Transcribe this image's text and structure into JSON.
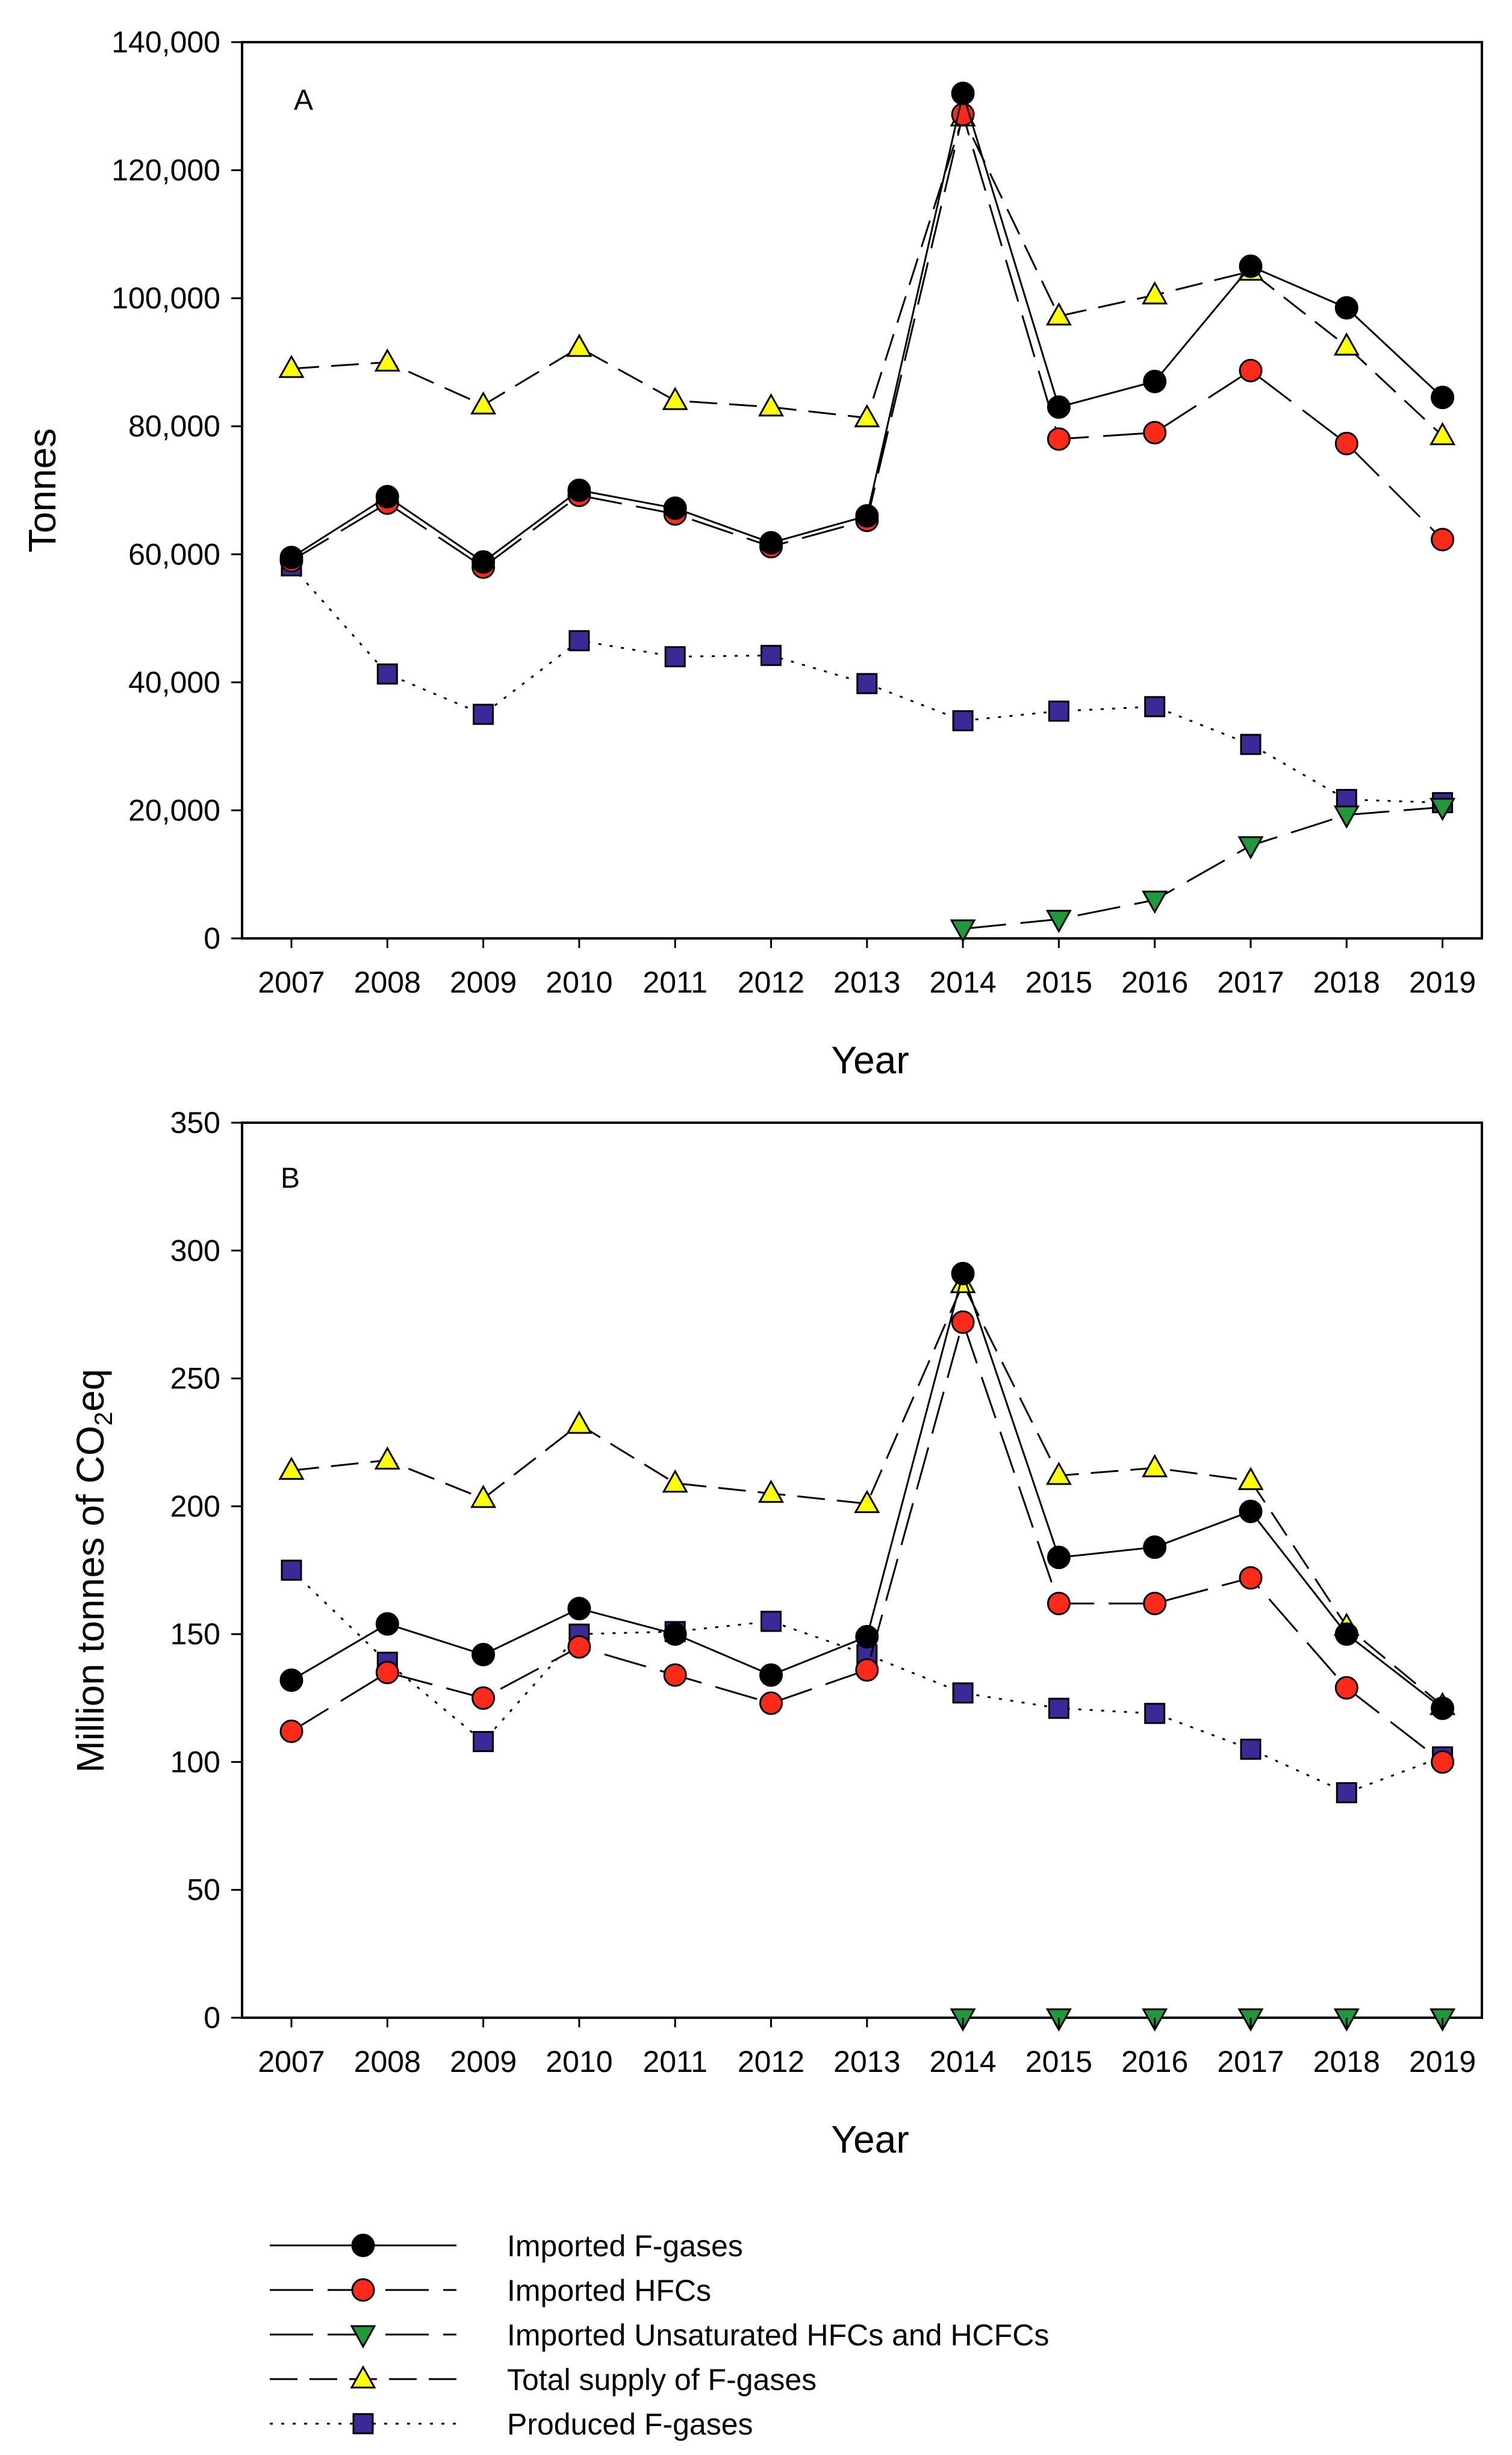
{
  "legend": {
    "items": [
      {
        "series": "Imported F-gases",
        "label": "Imported F-gases"
      },
      {
        "series": "Imported HFCs",
        "label": "Imported HFCs"
      },
      {
        "series": "Imported Unsaturated HFCs and HCFCs",
        "label": "Imported Unsaturated HFCs and HCFCs"
      },
      {
        "series": "Total supply of F-gases",
        "label": "Total supply of F-gases"
      },
      {
        "series": "Produced F-gases",
        "label": "Produced F-gases"
      }
    ]
  },
  "styles": {
    "Imported F-gases": {
      "color": "#000000",
      "marker": "circle",
      "dash": "solid"
    },
    "Imported HFCs": {
      "color": "#ff2a1a",
      "marker": "circle",
      "dash": "long-dash"
    },
    "Imported Unsaturated HFCs and HCFCs": {
      "color": "#1e9a3a",
      "marker": "triangle-down",
      "dash": "long-dash"
    },
    "Total supply of F-gases": {
      "color": "#ffff00",
      "marker": "triangle-up",
      "dash": "dash"
    },
    "Produced F-gases": {
      "color": "#3a2a98",
      "marker": "square",
      "dash": "dotted"
    }
  },
  "chart_data": [
    {
      "type": "line",
      "panel_label": "A",
      "xlabel": "Year",
      "ylabel": "Tonnes",
      "ylim": [
        0,
        140000
      ],
      "yticks": [
        0,
        20000,
        40000,
        60000,
        80000,
        100000,
        120000,
        140000
      ],
      "ytick_labels": [
        "0",
        "20,000",
        "40,000",
        "60,000",
        "80,000",
        "100,000",
        "120,000",
        "140,000"
      ],
      "categories": [
        "2007",
        "2008",
        "2009",
        "2010",
        "2011",
        "2012",
        "2013",
        "2014",
        "2015",
        "2016",
        "2017",
        "2018",
        "2019"
      ],
      "grid": false,
      "series": [
        {
          "name": "Imported F-gases",
          "values": [
            59500,
            69000,
            58800,
            70000,
            67200,
            61800,
            66000,
            132000,
            83000,
            87000,
            105000,
            98500,
            84500
          ]
        },
        {
          "name": "Imported HFCs",
          "values": [
            59000,
            68000,
            58000,
            69200,
            66300,
            61200,
            65300,
            128700,
            78000,
            79000,
            88700,
            77300,
            62300
          ]
        },
        {
          "name": "Imported Unsaturated HFCs and HCFCs",
          "values": [
            null,
            null,
            null,
            null,
            null,
            null,
            null,
            1500,
            3000,
            6000,
            14500,
            19300,
            20500
          ]
        },
        {
          "name": "Total supply of F-gases",
          "values": [
            89000,
            90000,
            83300,
            92300,
            84000,
            83000,
            81300,
            128300,
            97200,
            100500,
            104200,
            92500,
            78500
          ]
        },
        {
          "name": "Produced F-gases",
          "values": [
            58200,
            41300,
            35000,
            46500,
            44000,
            44200,
            39800,
            34000,
            35500,
            36200,
            30300,
            21700,
            21200
          ]
        }
      ]
    },
    {
      "type": "line",
      "panel_label": "B",
      "xlabel": "Year",
      "ylabel_main": "Million tonnes of CO",
      "ylabel_sub": "2",
      "ylabel_tail": "eq",
      "ylim": [
        0,
        350
      ],
      "yticks": [
        0,
        50,
        100,
        150,
        200,
        250,
        300,
        350
      ],
      "ytick_labels": [
        "0",
        "50",
        "100",
        "150",
        "200",
        "250",
        "300",
        "350"
      ],
      "categories": [
        "2007",
        "2008",
        "2009",
        "2010",
        "2011",
        "2012",
        "2013",
        "2014",
        "2015",
        "2016",
        "2017",
        "2018",
        "2019"
      ],
      "grid": false,
      "series": [
        {
          "name": "Imported F-gases",
          "values": [
            132,
            154,
            142,
            160,
            150,
            134,
            149,
            291,
            180,
            184,
            198,
            150,
            121
          ]
        },
        {
          "name": "Imported HFCs",
          "values": [
            112,
            135,
            125,
            145,
            134,
            123,
            136,
            272,
            162,
            162,
            172,
            129,
            100
          ]
        },
        {
          "name": "Imported Unsaturated HFCs and HCFCs",
          "values": [
            null,
            null,
            null,
            null,
            null,
            null,
            null,
            0,
            0,
            0,
            0,
            0,
            0
          ]
        },
        {
          "name": "Total supply of F-gases",
          "values": [
            214,
            218,
            203,
            232,
            209,
            205,
            201,
            287,
            212,
            215,
            210,
            153,
            122
          ]
        },
        {
          "name": "Produced F-gases",
          "values": [
            175,
            139,
            108,
            150,
            151,
            155,
            142,
            127,
            121,
            119,
            105,
            88,
            102
          ]
        }
      ]
    }
  ]
}
